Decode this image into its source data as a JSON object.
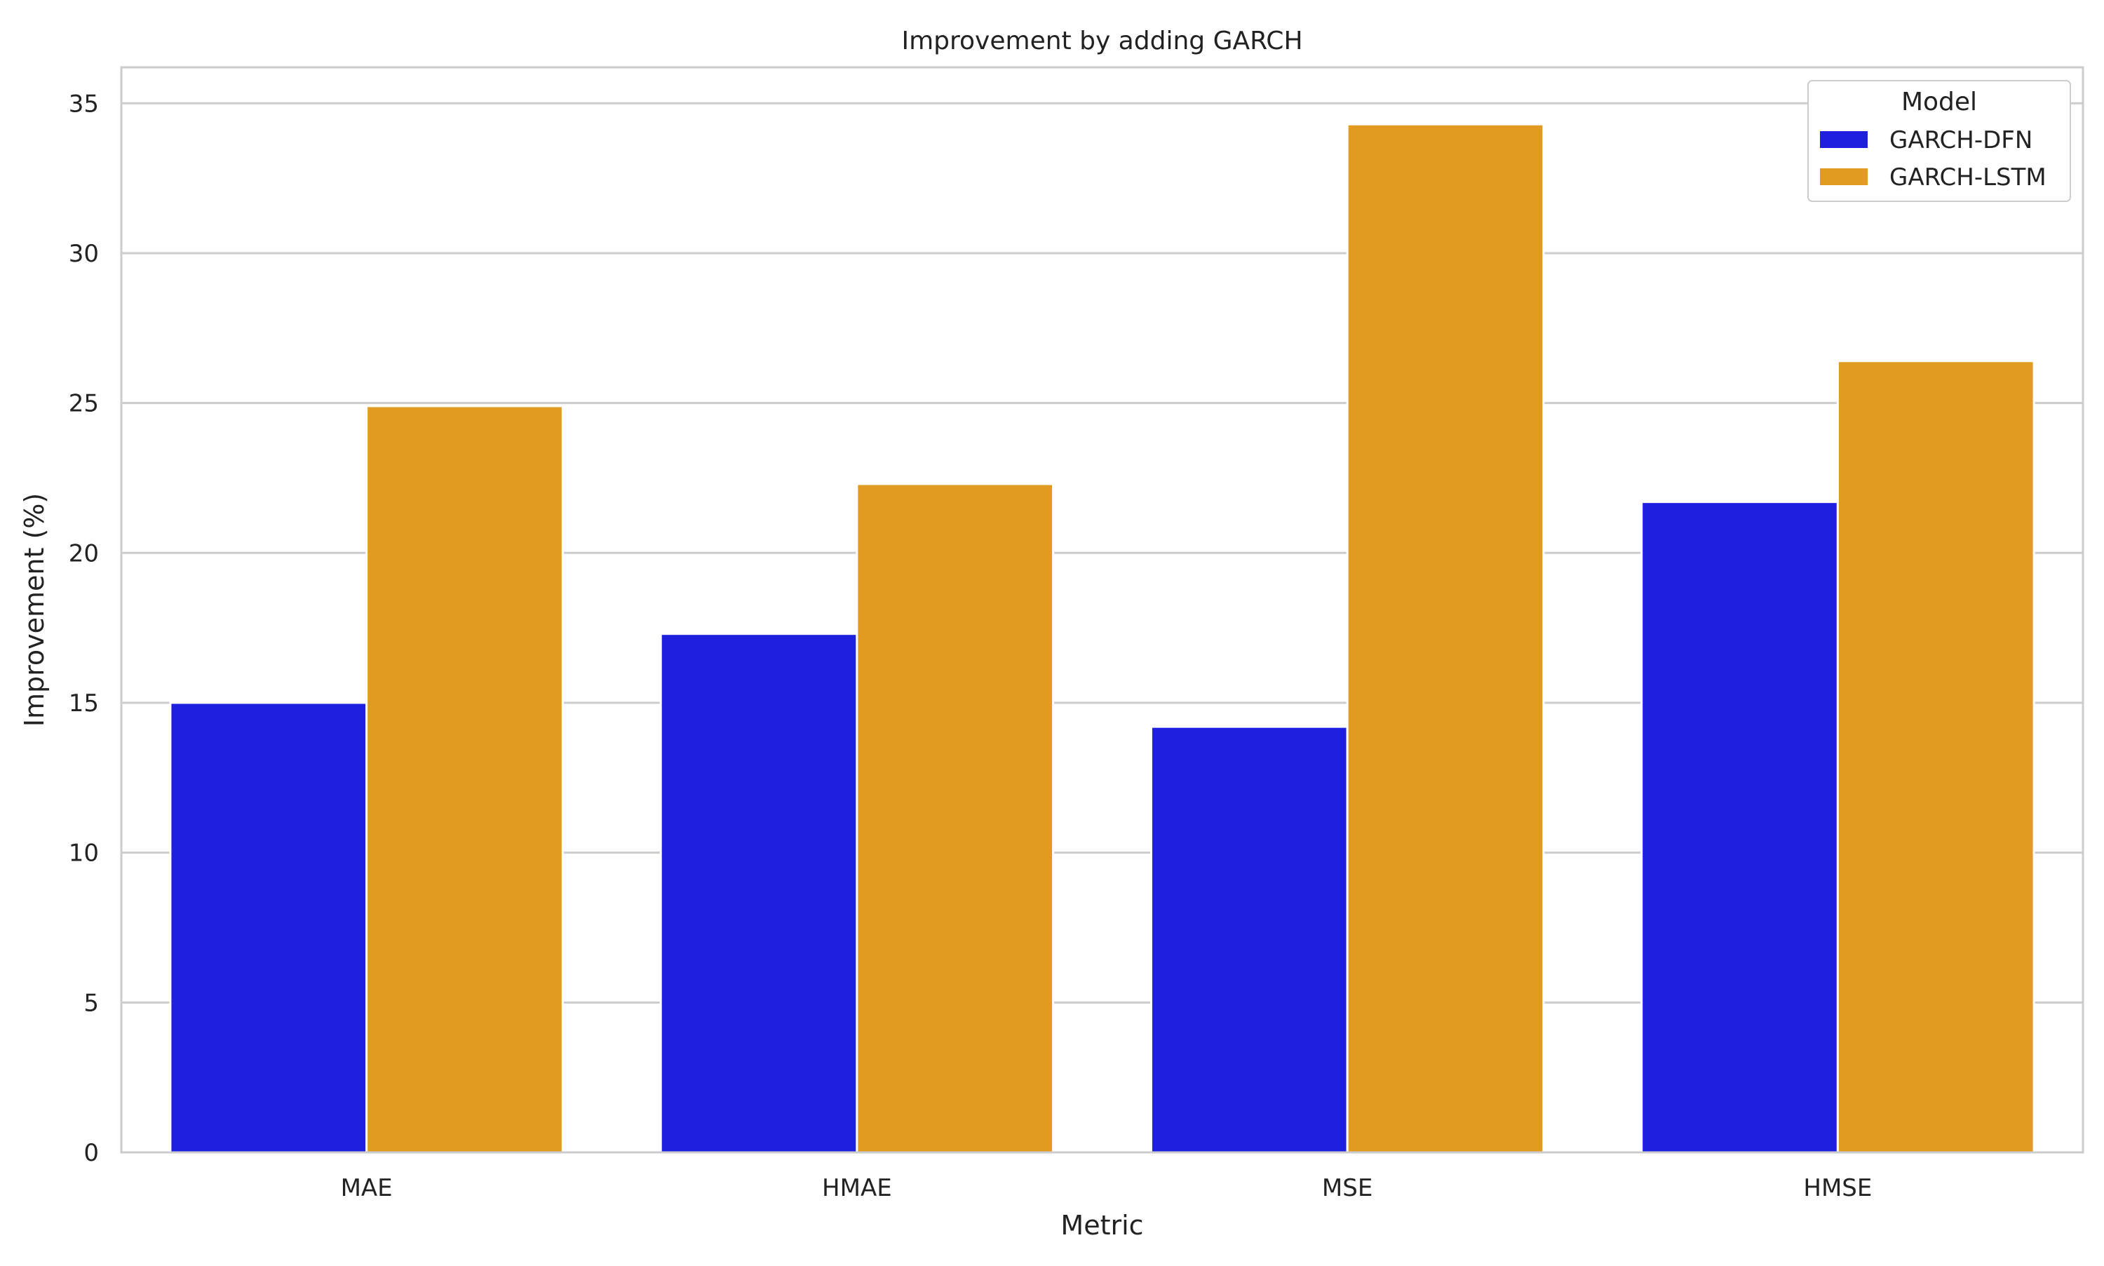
{
  "chart_data": {
    "type": "bar",
    "title": "Improvement by adding GARCH",
    "xlabel": "Metric",
    "ylabel": "Improvement (%)",
    "categories": [
      "MAE",
      "HMAE",
      "MSE",
      "HMSE"
    ],
    "series": [
      {
        "name": "GARCH-DFN",
        "color": "#1f1fe0",
        "values": [
          15.0,
          17.3,
          14.2,
          21.7
        ]
      },
      {
        "name": "GARCH-LSTM",
        "color": "#e09b20",
        "values": [
          24.9,
          22.3,
          34.3,
          26.4
        ]
      }
    ],
    "ylim": [
      0,
      36.2
    ],
    "yticks": [
      0,
      5,
      10,
      15,
      20,
      25,
      30,
      35
    ],
    "grid": true,
    "legend": {
      "title": "Model",
      "placement": "top-right"
    }
  },
  "colors": {
    "grid": "#cccccc",
    "frame": "#cccccc",
    "text": "#222222"
  }
}
